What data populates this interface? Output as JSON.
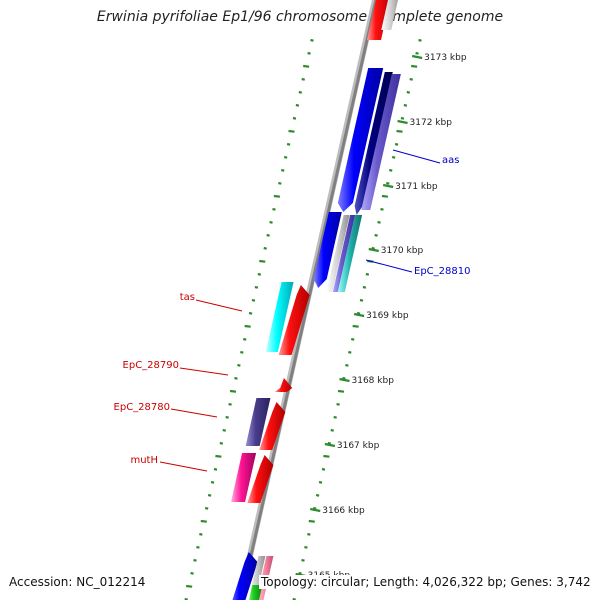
{
  "title": "Erwinia pyrifoliae Ep1/96 chromosome, complete genome",
  "accession_text": "Accession: NC_012214",
  "summary_text": "Topology: circular; Length: 4,026,322 bp; Genes: 3,742",
  "colors": {
    "backbone": "#808080",
    "tick_green": "#2e8b2e",
    "forward_label": "#0000cc",
    "reverse_label": "#cc0000"
  },
  "scale_ticks": [
    {
      "label": "3173 kbp"
    },
    {
      "label": "3172 kbp"
    },
    {
      "label": "3171 kbp"
    },
    {
      "label": "3170 kbp"
    },
    {
      "label": "3169 kbp"
    },
    {
      "label": "3168 kbp"
    },
    {
      "label": "3167 kbp"
    },
    {
      "label": "3166 kbp"
    },
    {
      "label": "3165 kbp"
    }
  ],
  "gene_labels": [
    {
      "text": "aas",
      "strand": "forward"
    },
    {
      "text": "EpC_28810",
      "strand": "forward"
    },
    {
      "text": "tas",
      "strand": "reverse"
    },
    {
      "text": "EpC_28790",
      "strand": "reverse"
    },
    {
      "text": "EpC_28780",
      "strand": "reverse"
    },
    {
      "text": "mutH",
      "strand": "reverse"
    }
  ]
}
